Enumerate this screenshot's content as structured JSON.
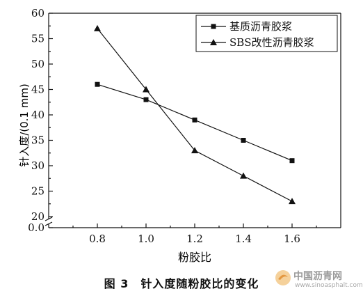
{
  "caption": "图 3　针入度随粉胶比的变化",
  "watermark": {
    "name": "中国沥青网",
    "url": "www.sinoasphalt.com"
  },
  "chart_data": {
    "type": "line",
    "title": "",
    "xlabel": "粉胶比",
    "ylabel": "针入度/(0.1 mm)",
    "x": [
      0.8,
      1.0,
      1.2,
      1.4,
      1.6
    ],
    "xlim": [
      0.6,
      1.8
    ],
    "x_ticks": [
      "0.8",
      "1.0",
      "1.2",
      "1.4",
      "1.6"
    ],
    "ylim": [
      20,
      60
    ],
    "y_ticks": [
      "20",
      "25",
      "30",
      "35",
      "40",
      "45",
      "50",
      "55",
      "60"
    ],
    "y_break": {
      "lower_label": "0.0",
      "from": 0,
      "to": 20
    },
    "grid": false,
    "legend_position": "top-right",
    "series": [
      {
        "name": "基质沥青胶浆",
        "marker": "square",
        "values": [
          46,
          43,
          39,
          35,
          31
        ]
      },
      {
        "name": "SBS改性沥青胶浆",
        "marker": "triangle",
        "values": [
          57,
          45,
          33,
          28,
          23
        ]
      }
    ]
  }
}
